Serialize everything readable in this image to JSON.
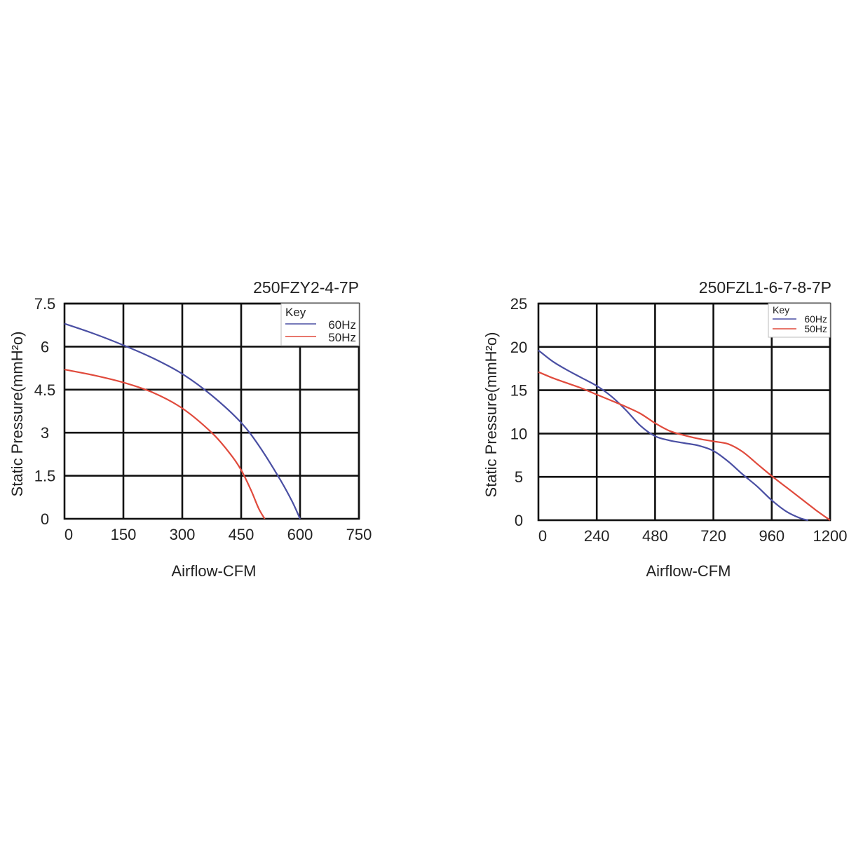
{
  "chart_data": [
    {
      "type": "line",
      "title": "250FZY2-4-7P",
      "xlabel": "Airflow-CFM",
      "ylabel": "Static Pressure(mmH²o)",
      "xlim": [
        0,
        750
      ],
      "ylim": [
        0,
        7.5
      ],
      "xticks": [
        0,
        150,
        300,
        450,
        600,
        750
      ],
      "yticks": [
        0,
        1.5,
        3,
        4.5,
        6,
        7.5
      ],
      "xtick_labels": [
        "0",
        "150",
        "300",
        "450",
        "600",
        "750"
      ],
      "ytick_labels": [
        "0",
        "1.5",
        "3",
        "4.5",
        "6",
        "7.5"
      ],
      "grid": true,
      "legend": {
        "title": "Key",
        "position": "top-right"
      },
      "series": [
        {
          "name": "60Hz",
          "color": "#4a4fa3",
          "x": [
            0,
            75,
            150,
            225,
            300,
            375,
            450,
            500,
            550,
            580,
            600
          ],
          "y": [
            6.8,
            6.45,
            6.05,
            5.6,
            5.05,
            4.3,
            3.35,
            2.45,
            1.35,
            0.6,
            0
          ]
        },
        {
          "name": "50Hz",
          "color": "#e04a3c",
          "x": [
            0,
            75,
            150,
            225,
            300,
            375,
            420,
            450,
            475,
            495,
            510
          ],
          "y": [
            5.2,
            5.0,
            4.75,
            4.4,
            3.85,
            3.0,
            2.3,
            1.7,
            1.0,
            0.35,
            0
          ]
        }
      ]
    },
    {
      "type": "line",
      "title": "250FZL1-6-7-8-7P",
      "xlabel": "Airflow-CFM",
      "ylabel": "Static Pressure(mmH²o)",
      "xlim": [
        0,
        1200
      ],
      "ylim": [
        0,
        25
      ],
      "xticks": [
        0,
        240,
        480,
        720,
        960,
        1200
      ],
      "yticks": [
        0,
        5,
        10,
        15,
        20,
        25
      ],
      "xtick_labels": [
        "0",
        "240",
        "480",
        "720",
        "960",
        "1200"
      ],
      "ytick_labels": [
        "0",
        "5",
        "10",
        "15",
        "20",
        "25"
      ],
      "grid": true,
      "legend": {
        "title": "Key",
        "position": "top-right"
      },
      "series": [
        {
          "name": "60Hz",
          "color": "#4a4fa3",
          "x": [
            0,
            60,
            120,
            180,
            240,
            300,
            360,
            420,
            480,
            540,
            600,
            660,
            720,
            780,
            840,
            900,
            960,
            1020,
            1080,
            1110
          ],
          "y": [
            19.6,
            18.3,
            17.3,
            16.4,
            15.5,
            14.3,
            12.7,
            10.9,
            9.7,
            9.2,
            8.9,
            8.6,
            8.0,
            6.8,
            5.3,
            3.9,
            2.3,
            1.0,
            0.2,
            0
          ]
        },
        {
          "name": "50Hz",
          "color": "#e04a3c",
          "x": [
            0,
            60,
            120,
            180,
            240,
            300,
            360,
            420,
            480,
            540,
            600,
            660,
            720,
            780,
            840,
            900,
            960,
            1020,
            1080,
            1140,
            1200
          ],
          "y": [
            17.1,
            16.4,
            15.8,
            15.2,
            14.5,
            13.8,
            13.1,
            12.3,
            11.2,
            10.3,
            9.8,
            9.4,
            9.1,
            8.8,
            7.9,
            6.5,
            5.1,
            3.8,
            2.5,
            1.2,
            0
          ]
        }
      ]
    }
  ]
}
